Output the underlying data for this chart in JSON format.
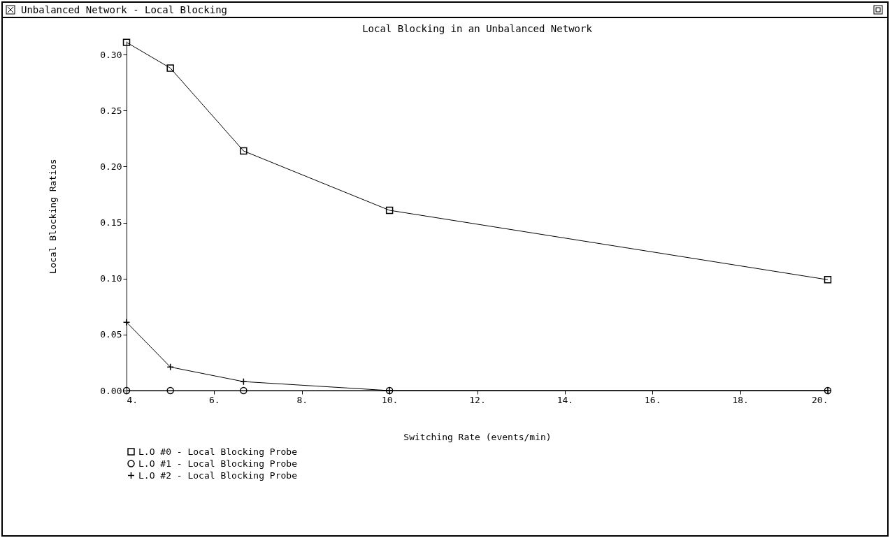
{
  "chart_data": {
    "type": "line",
    "title": "Local Blocking in an Unbalanced Network",
    "xlabel": "Switching Rate (events/min)",
    "ylabel": "Local Blocking Ratios",
    "annotations": [
      "Unbalanced Network - Local Blocking"
    ],
    "x": [
      4,
      5,
      6.67,
      10,
      20
    ],
    "series": [
      {
        "name": "L.O #0 - Local Blocking Probe",
        "color": "#000000",
        "marker": "square",
        "values": [
          0.311,
          0.288,
          0.214,
          0.161,
          0.099
        ]
      },
      {
        "name": "L.O #1 - Local Blocking Probe",
        "color": "#000000",
        "marker": "circle",
        "values": [
          0,
          0,
          0,
          0,
          0
        ]
      },
      {
        "name": "L.O #2 - Local Blocking Probe",
        "color": "#000000",
        "marker": "cross",
        "values": [
          0.061,
          0.021,
          0.008,
          0,
          0
        ]
      }
    ],
    "xlim": [
      4,
      20
    ],
    "ylim": [
      0,
      0.312
    ],
    "xticks": [
      {
        "value": 4,
        "label": "4."
      },
      {
        "value": 6,
        "label": "6."
      },
      {
        "value": 8,
        "label": "8."
      },
      {
        "value": 10,
        "label": "10."
      },
      {
        "value": 12,
        "label": "12."
      },
      {
        "value": 14,
        "label": "14."
      },
      {
        "value": 16,
        "label": "16."
      },
      {
        "value": 18,
        "label": "18."
      },
      {
        "value": 20,
        "label": "20."
      }
    ],
    "yticks": [
      {
        "value": 0,
        "label": "0.00"
      },
      {
        "value": 0.05,
        "label": "0.05"
      },
      {
        "value": 0.1,
        "label": "0.10"
      },
      {
        "value": 0.15,
        "label": "0.15"
      },
      {
        "value": 0.2,
        "label": "0.20"
      },
      {
        "value": 0.25,
        "label": "0.25"
      },
      {
        "value": 0.3,
        "label": "0.30"
      }
    ],
    "grid": false,
    "legend": "bottom",
    "line_style": "solid"
  }
}
